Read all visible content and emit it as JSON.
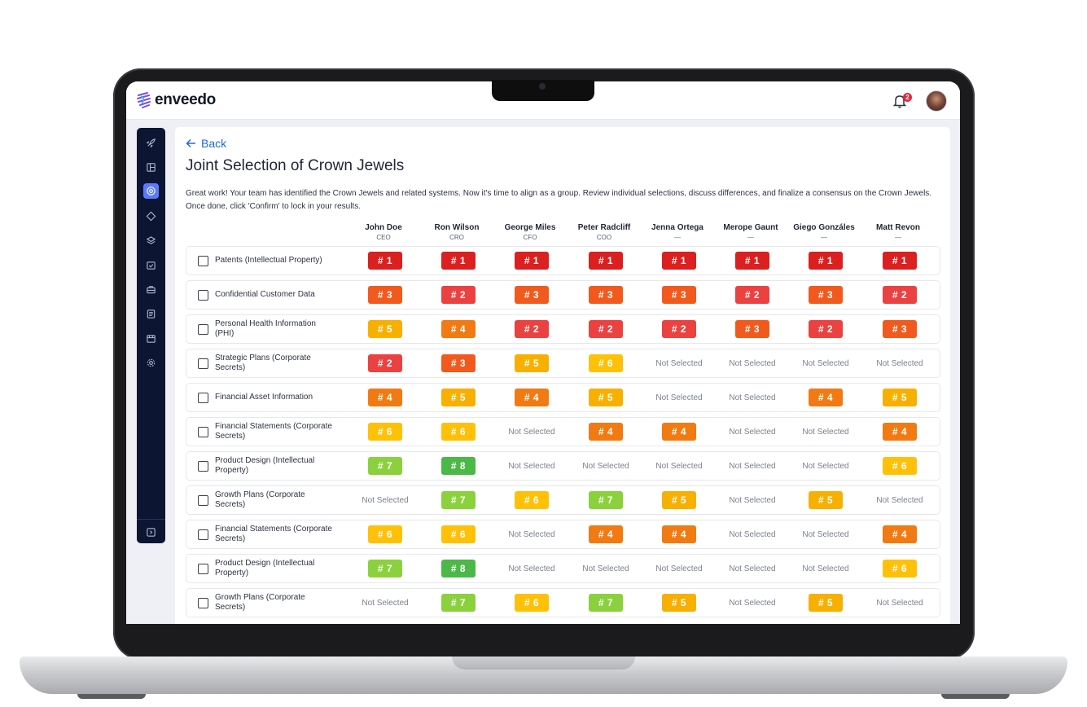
{
  "app": {
    "name": "enveedo",
    "notification_count": "2"
  },
  "sidebar_icons": [
    "rocket-icon",
    "layout-icon",
    "target-icon",
    "diamond-icon",
    "layers-icon",
    "clipboard-check-icon",
    "briefcase-icon",
    "document-list-icon",
    "calendar-icon",
    "settings-gear-icon"
  ],
  "back_label": "Back",
  "title": "Joint Selection of Crown Jewels",
  "description": "Great work! Your team has identified the Crown Jewels and related systems. Now it's time to align as a group. Review individual selections, discuss differences, and finalize a consensus on the Crown Jewels. Once done, click 'Confirm' to lock in your results.",
  "colors": {
    "rank1": "#dc1f1f",
    "rank2": "#ec4141",
    "rank3": "#f25a1d",
    "rank4": "#f27a12",
    "rank5": "#f8b000",
    "rank6": "#ffc107",
    "rank7": "#8bd13d",
    "rank8": "#4cb847",
    "accent": "#1f6ad8",
    "sidebar": "#0c1633"
  },
  "members": [
    {
      "name": "John Doe",
      "role": "CEO"
    },
    {
      "name": "Ron Wilson",
      "role": "CRO"
    },
    {
      "name": "George Miles",
      "role": "CFO"
    },
    {
      "name": "Peter Radcliff",
      "role": "COO"
    },
    {
      "name": "Jenna Ortega",
      "role": "—"
    },
    {
      "name": "Merope Gaunt",
      "role": "—"
    },
    {
      "name": "Giego Gonzáles",
      "role": "—"
    },
    {
      "name": "Matt Revon",
      "role": "—"
    }
  ],
  "not_selected_label": "Not Selected",
  "rows": [
    {
      "label": "Patents (Intellectual Property)",
      "ranks": [
        "# 1",
        "# 1",
        "# 1",
        "# 1",
        "# 1",
        "# 1",
        "# 1",
        "# 1"
      ]
    },
    {
      "label": "Confidential Customer Data",
      "ranks": [
        "# 3",
        "# 2",
        "# 3",
        "# 3",
        "# 3",
        "# 2",
        "# 3",
        "# 2"
      ]
    },
    {
      "label": "Personal Health Information (PHI)",
      "ranks": [
        "# 5",
        "# 4",
        "# 2",
        "# 2",
        "# 2",
        "# 3",
        "# 2",
        "# 3"
      ]
    },
    {
      "label": "Strategic Plans (Corporate Secrets)",
      "ranks": [
        "# 2",
        "# 3",
        "# 5",
        "# 6",
        "Not Selected",
        "Not Selected",
        "Not Selected",
        "Not Selected"
      ]
    },
    {
      "label": "Financial Asset Information",
      "ranks": [
        "# 4",
        "# 5",
        "# 4",
        "# 5",
        "Not Selected",
        "Not Selected",
        "# 4",
        "# 5"
      ]
    },
    {
      "label": "Financial Statements (Corporate Secrets)",
      "ranks": [
        "# 6",
        "# 6",
        "Not Selected",
        "# 4",
        "# 4",
        "Not Selected",
        "Not Selected",
        "# 4"
      ]
    },
    {
      "label": "Product Design (Intellectual Property)",
      "ranks": [
        "# 7",
        "# 8",
        "Not Selected",
        "Not Selected",
        "Not Selected",
        "Not Selected",
        "Not Selected",
        "# 6"
      ]
    },
    {
      "label": "Growth Plans (Corporate Secrets)",
      "ranks": [
        "Not Selected",
        "# 7",
        "# 6",
        "# 7",
        "# 5",
        "Not Selected",
        "# 5",
        "Not Selected"
      ]
    },
    {
      "label": "Financial Statements (Corporate Secrets)",
      "ranks": [
        "# 6",
        "# 6",
        "Not Selected",
        "# 4",
        "# 4",
        "Not Selected",
        "Not Selected",
        "# 4"
      ]
    },
    {
      "label": "Product Design (Intellectual Property)",
      "ranks": [
        "# 7",
        "# 8",
        "Not Selected",
        "Not Selected",
        "Not Selected",
        "Not Selected",
        "Not Selected",
        "# 6"
      ]
    },
    {
      "label": "Growth Plans (Corporate Secrets)",
      "ranks": [
        "Not Selected",
        "# 7",
        "# 6",
        "# 7",
        "# 5",
        "Not Selected",
        "# 5",
        "Not Selected"
      ]
    }
  ]
}
